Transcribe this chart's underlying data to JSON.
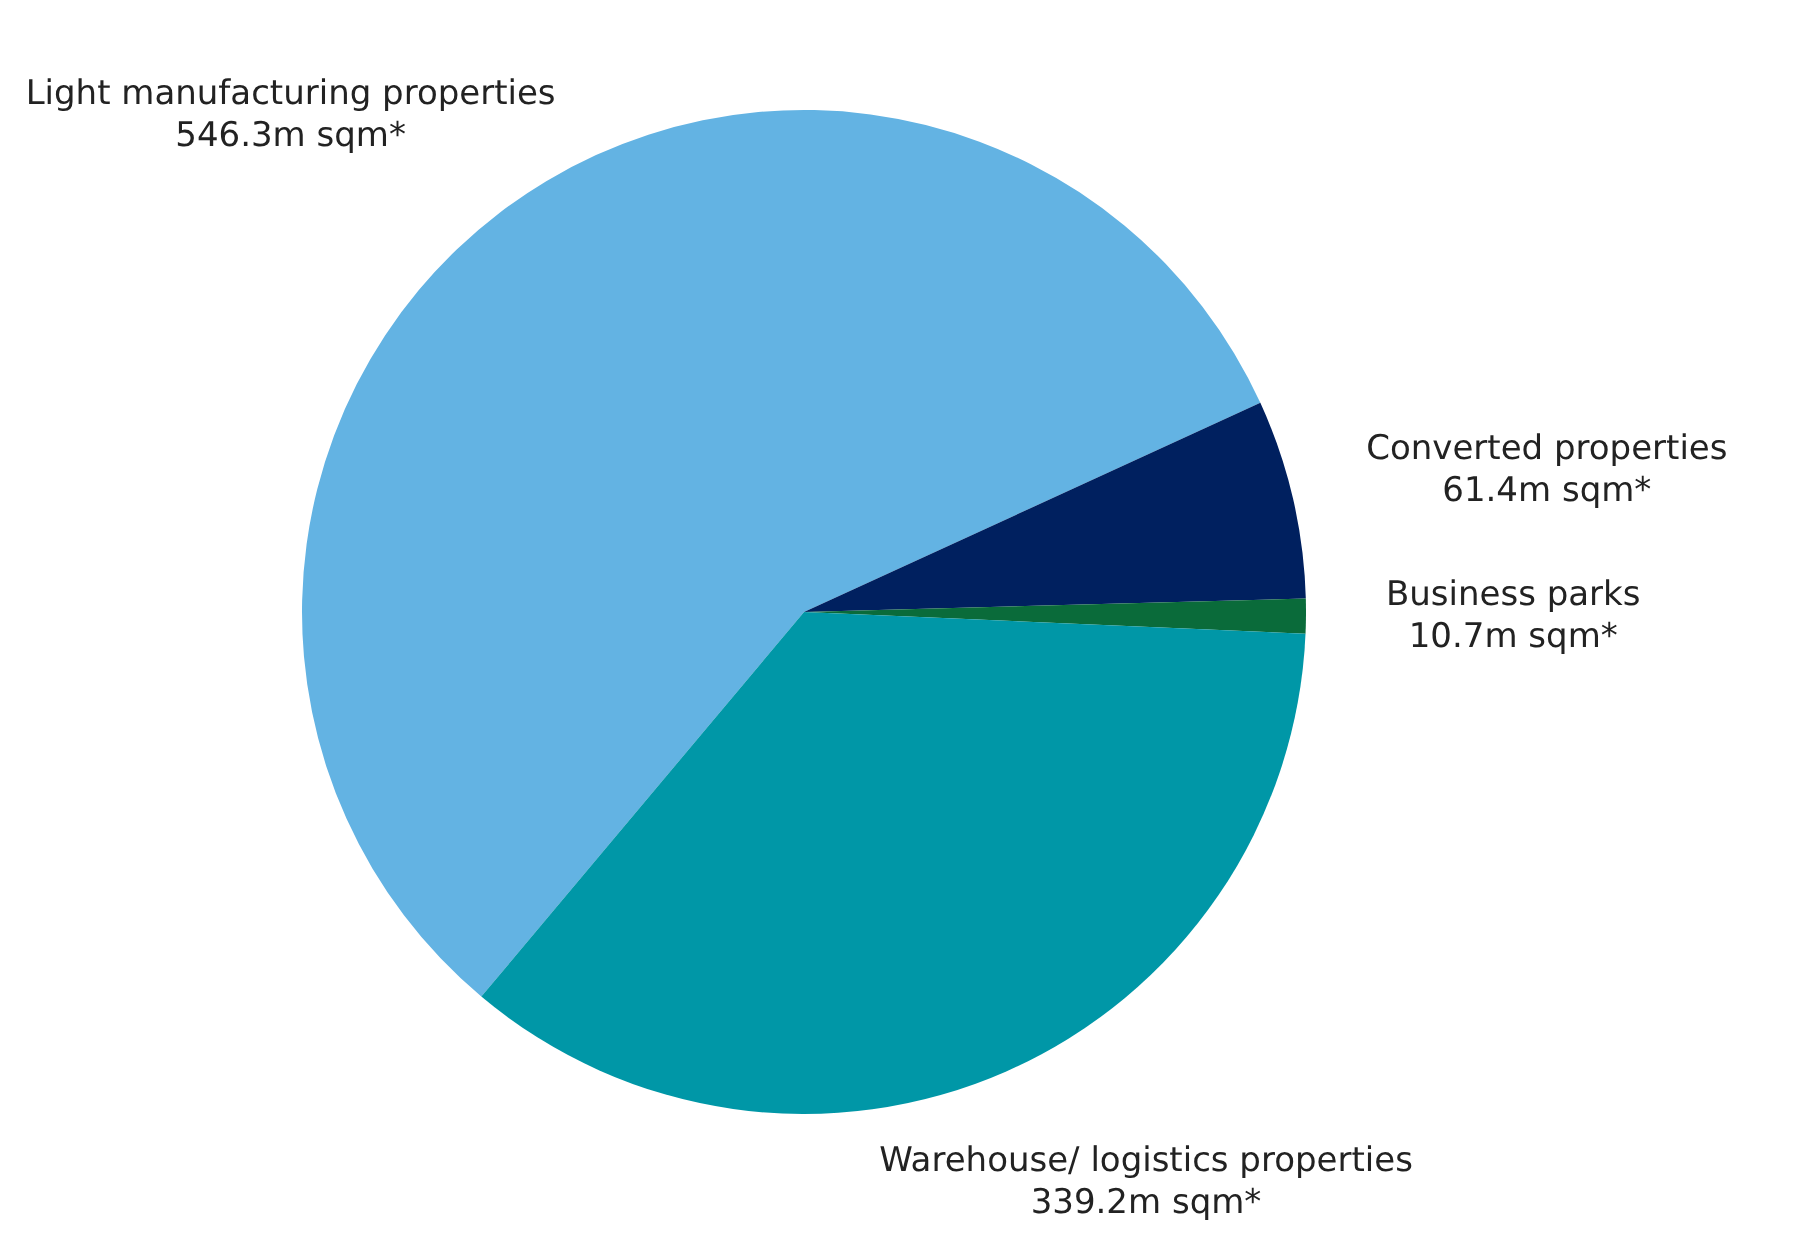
{
  "chart_data": {
    "type": "pie",
    "categories": [
      "Light manufacturing properties",
      "Converted properties",
      "Business parks",
      "Warehouse/ logistics properties"
    ],
    "values": [
      546.3,
      61.4,
      10.7,
      339.2
    ],
    "value_labels": [
      "546.3m sqm*",
      "61.4m sqm*",
      "10.7m sqm*",
      "339.2m sqm*"
    ],
    "colors": [
      "#63b3e3",
      "#00205f",
      "#0a6b3a",
      "#0097a7"
    ]
  }
}
